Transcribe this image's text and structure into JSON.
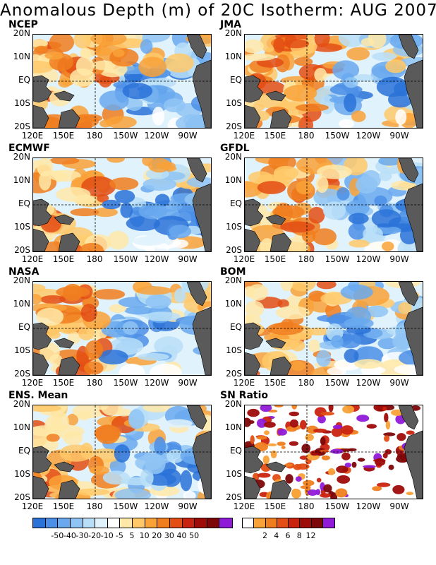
{
  "title": "Anomalous Depth (m) of 20C Isotherm: AUG 2007",
  "lat_labels": [
    "20N",
    "10N",
    "EQ",
    "10S",
    "20S"
  ],
  "lon_labels": [
    "120E",
    "150E",
    "180",
    "150W",
    "120W",
    "90W"
  ],
  "panels": [
    {
      "name": "NCEP"
    },
    {
      "name": "JMA"
    },
    {
      "name": "ECMWF"
    },
    {
      "name": "GFDL"
    },
    {
      "name": "NASA"
    },
    {
      "name": "BOM"
    },
    {
      "name": "ENS. Mean"
    },
    {
      "name": "SN Ratio"
    }
  ],
  "colorbar_anomaly": {
    "colors": [
      "#2a72d8",
      "#4c8fe6",
      "#6aa9ee",
      "#8fc4f4",
      "#b9dff8",
      "#e0f2fb",
      "#ffffff",
      "#ffe9a8",
      "#ffc96a",
      "#f9a238",
      "#f07e1e",
      "#e34e14",
      "#c9230f",
      "#9e0c0a",
      "#7d0608",
      "#8f1ad8"
    ],
    "labels": [
      "-50",
      "-40",
      "-30",
      "-20",
      "-10",
      "-5",
      "5",
      "10",
      "20",
      "30",
      "40",
      "50"
    ]
  },
  "colorbar_sn": {
    "colors": [
      "#ffffff",
      "#f9a238",
      "#f07e1e",
      "#e34e14",
      "#c9230f",
      "#9e0c0a",
      "#7d0608",
      "#8f1ad8"
    ],
    "labels": [
      "2",
      "4",
      "6",
      "8",
      "12"
    ]
  },
  "land_color": "#5a5a5a"
}
